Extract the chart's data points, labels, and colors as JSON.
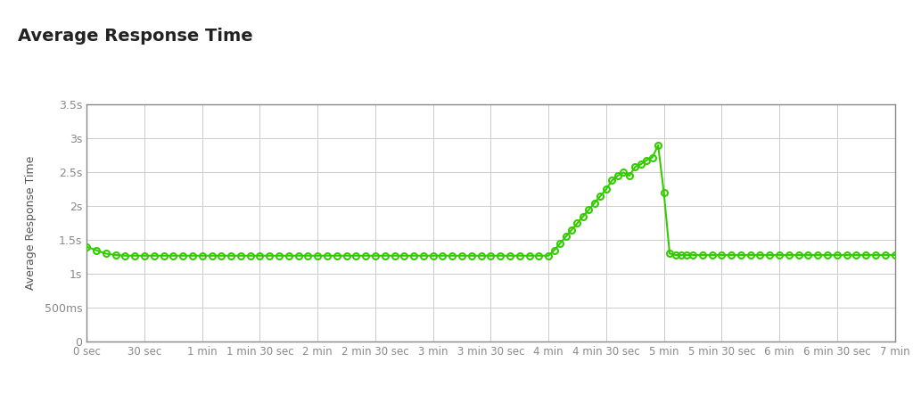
{
  "title": "Average Response Time",
  "ylabel": "Average Response Time",
  "line_color": "#33cc00",
  "marker_color": "#33cc00",
  "background_color": "#ffffff",
  "plot_background": "#ffffff",
  "grid_color": "#cccccc",
  "axis_color": "#555555",
  "tick_label_color": "#888888",
  "title_color": "#222222",
  "xlim": [
    0,
    420
  ],
  "ylim": [
    0,
    3.5
  ],
  "yticks": [
    0,
    0.5,
    1.0,
    1.5,
    2.0,
    2.5,
    3.0,
    3.5
  ],
  "ytick_labels": [
    "0",
    "500ms",
    "1s",
    "1.5s",
    "2s",
    "2.5s",
    "3s",
    "3.5s"
  ],
  "xticks": [
    0,
    30,
    60,
    90,
    120,
    150,
    180,
    210,
    240,
    270,
    300,
    330,
    360,
    390,
    420
  ],
  "xtick_labels": [
    "0 sec",
    "30 sec",
    "1 min",
    "1 min 30 sec",
    "2 min",
    "2 min 30 sec",
    "3 min",
    "3 min 30 sec",
    "4 min",
    "4 min 30 sec",
    "5 min",
    "5 min 30 sec",
    "6 min",
    "6 min 30 sec",
    "7 min"
  ],
  "x_data": [
    0,
    5,
    10,
    15,
    20,
    25,
    30,
    35,
    40,
    45,
    50,
    55,
    60,
    65,
    70,
    75,
    80,
    85,
    90,
    95,
    100,
    105,
    110,
    115,
    120,
    125,
    130,
    135,
    140,
    145,
    150,
    155,
    160,
    165,
    170,
    175,
    180,
    185,
    190,
    195,
    200,
    205,
    210,
    215,
    220,
    225,
    230,
    235,
    240,
    243,
    246,
    249,
    252,
    255,
    258,
    261,
    264,
    267,
    270,
    273,
    276,
    279,
    282,
    285,
    288,
    291,
    294,
    297,
    300,
    303,
    306,
    309,
    312,
    315,
    320,
    325,
    330,
    335,
    340,
    345,
    350,
    355,
    360,
    365,
    370,
    375,
    380,
    385,
    390,
    395,
    400,
    405,
    410,
    415,
    420
  ],
  "y_data": [
    1.4,
    1.35,
    1.3,
    1.28,
    1.27,
    1.27,
    1.27,
    1.27,
    1.27,
    1.27,
    1.27,
    1.27,
    1.27,
    1.27,
    1.27,
    1.27,
    1.27,
    1.27,
    1.27,
    1.27,
    1.27,
    1.27,
    1.27,
    1.27,
    1.27,
    1.27,
    1.27,
    1.27,
    1.27,
    1.27,
    1.27,
    1.27,
    1.27,
    1.27,
    1.27,
    1.27,
    1.27,
    1.27,
    1.27,
    1.27,
    1.27,
    1.27,
    1.27,
    1.27,
    1.27,
    1.27,
    1.27,
    1.27,
    1.27,
    1.35,
    1.45,
    1.55,
    1.65,
    1.75,
    1.85,
    1.95,
    2.05,
    2.15,
    2.25,
    2.38,
    2.45,
    2.5,
    2.45,
    2.58,
    2.62,
    2.68,
    2.72,
    2.9,
    2.2,
    1.3,
    1.28,
    1.28,
    1.28,
    1.28,
    1.28,
    1.28,
    1.28,
    1.28,
    1.28,
    1.28,
    1.28,
    1.28,
    1.28,
    1.28,
    1.28,
    1.28,
    1.28,
    1.28,
    1.28,
    1.28,
    1.28,
    1.28,
    1.28,
    1.28,
    1.28
  ]
}
